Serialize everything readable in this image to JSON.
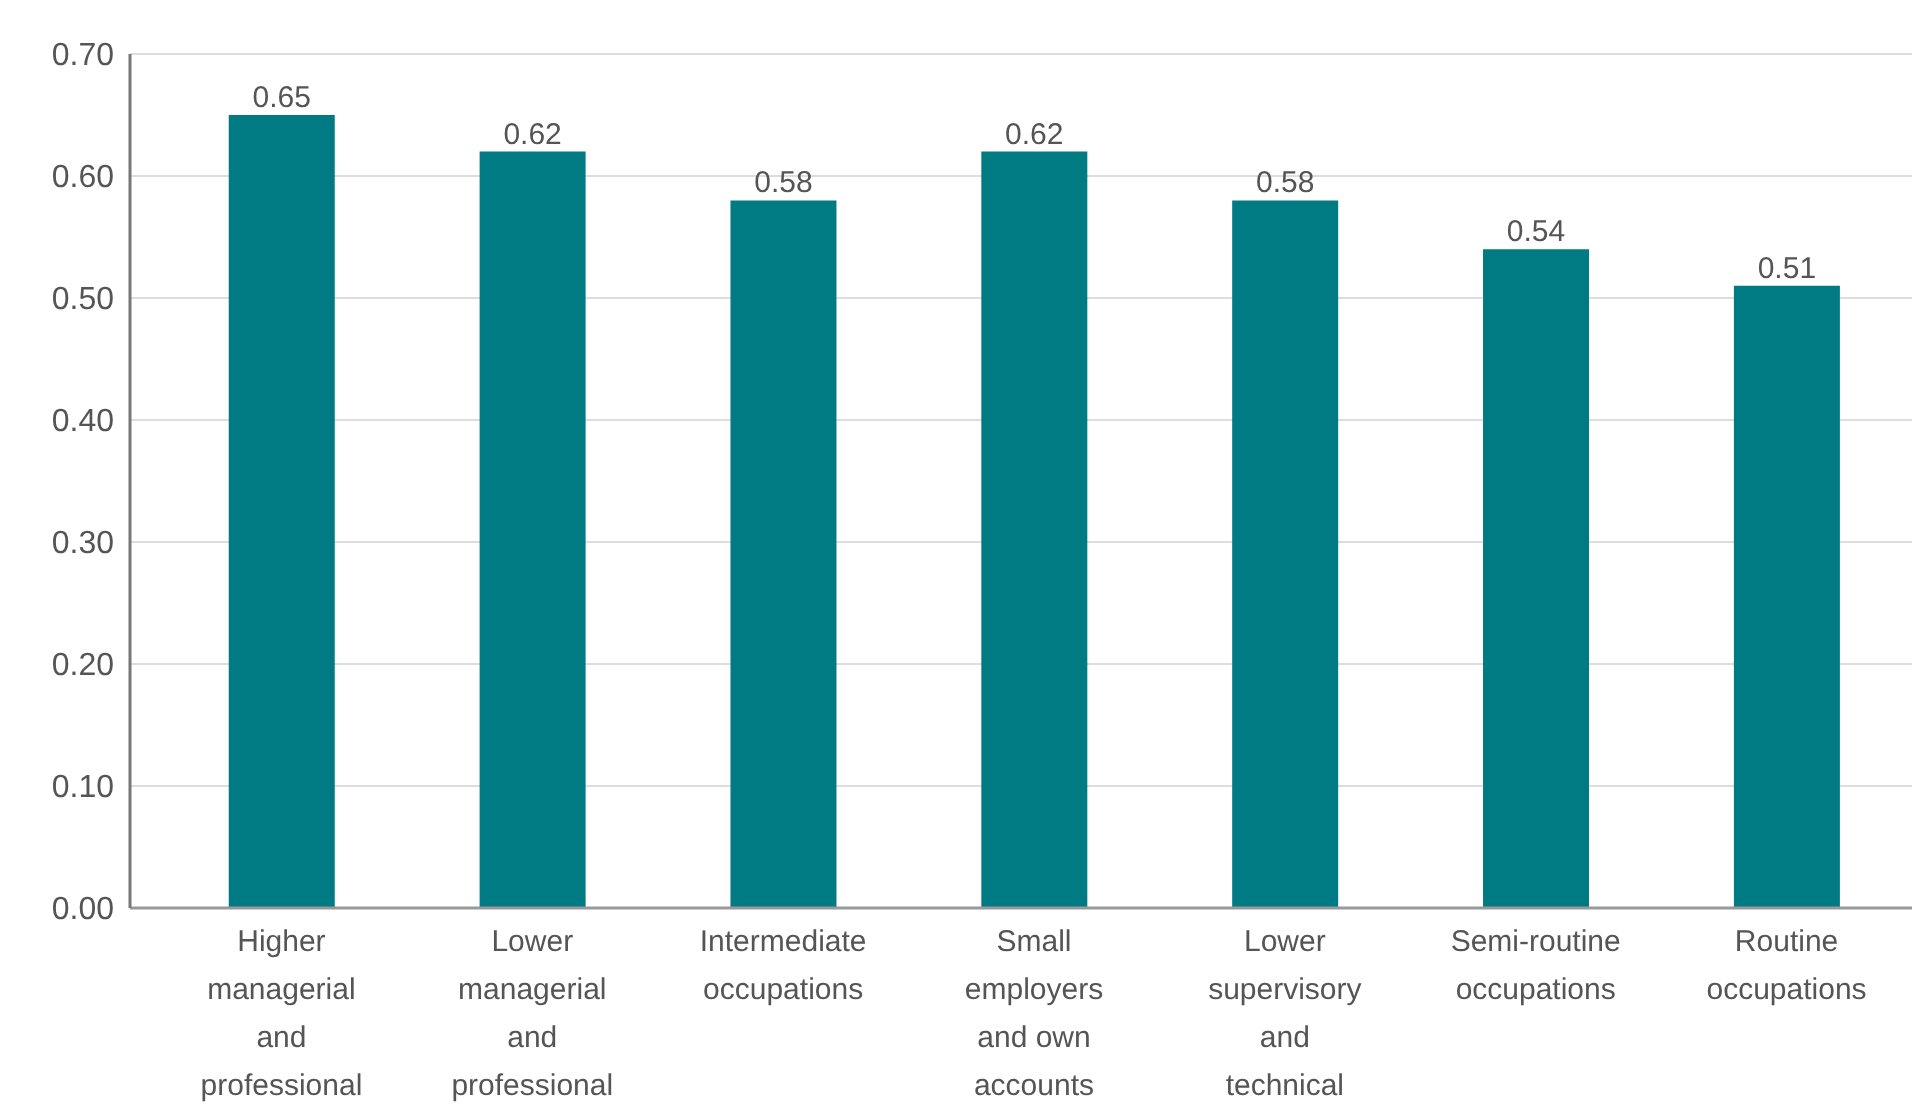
{
  "chart_data": {
    "type": "bar",
    "categories": [
      "Higher managerial and professional",
      "Lower managerial and professional",
      "Intermediate occupations",
      "Small employers and own accounts",
      "Lower supervisory and technical",
      "Semi-routine occupations",
      "Routine occupations"
    ],
    "values": [
      0.65,
      0.62,
      0.58,
      0.62,
      0.58,
      0.54,
      0.51
    ],
    "color": "#007b84",
    "ylim": [
      0,
      0.7
    ],
    "yticks": [
      {
        "value": 0,
        "label": "0.00"
      },
      {
        "value": 0.1,
        "label": "0.10"
      },
      {
        "value": 0.2,
        "label": "0.20"
      },
      {
        "value": 0.3,
        "label": "0.30"
      },
      {
        "value": 0.4,
        "label": "0.40"
      },
      {
        "value": 0.5,
        "label": "0.50"
      },
      {
        "value": 0.6,
        "label": "0.60"
      },
      {
        "value": 0.7,
        "label": "0.70"
      }
    ],
    "grid": "y",
    "data_labels": true
  }
}
